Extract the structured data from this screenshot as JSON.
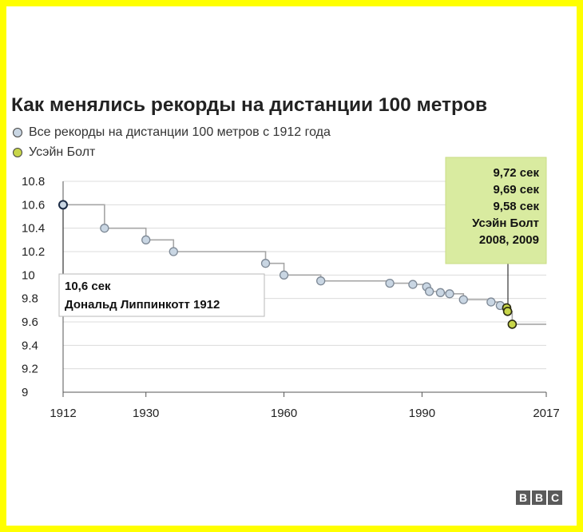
{
  "title": "Как менялись рекорды на дистанции 100 метров",
  "legend": [
    {
      "label": "Все рекорды на дистанции 100 метров с 1912 года",
      "color": "#c9d6e3"
    },
    {
      "label": "Усэйн Болт",
      "color": "#c8d64a"
    }
  ],
  "annotations": {
    "start": [
      "10,6 сек",
      "Дональд Липпинкотт 1912"
    ],
    "bolt": [
      "9,72 сек",
      "9,69 сек",
      "9,58 сек",
      "Усэйн Болт",
      "2008, 2009"
    ]
  },
  "logo": [
    "B",
    "B",
    "C"
  ],
  "colors": {
    "step_line": "#a6a6a6",
    "record_fill": "#c9d6e3",
    "bolt_fill": "#c8d64a",
    "bolt_box": "#d9eba0",
    "grid": "#dcdcdc"
  },
  "chart_data": {
    "type": "line",
    "step": true,
    "x_range": [
      1912,
      2017
    ],
    "ylim": [
      9,
      10.8
    ],
    "y_ticks": [
      "10.8",
      "10.6",
      "10.4",
      "10.2",
      "10",
      "9.8",
      "9.6",
      "9.4",
      "9.2",
      "9"
    ],
    "x_ticks": [
      "1912",
      "1930",
      "1960",
      "1990",
      "2017"
    ],
    "grid": "horizontal",
    "series": [
      {
        "name": "Все рекорды на дистанции 100 метров с 1912 года",
        "points": [
          [
            1912,
            10.6
          ],
          [
            1921,
            10.4
          ],
          [
            1930,
            10.3
          ],
          [
            1936,
            10.2
          ],
          [
            1956,
            10.1
          ],
          [
            1960,
            10.0
          ],
          [
            1968,
            9.95
          ],
          [
            1983,
            9.93
          ],
          [
            1988,
            9.92
          ],
          [
            1991,
            9.9
          ],
          [
            1991.6,
            9.86
          ],
          [
            1994,
            9.85
          ],
          [
            1996,
            9.84
          ],
          [
            1999,
            9.79
          ],
          [
            2005,
            9.77
          ],
          [
            2007,
            9.74
          ]
        ]
      },
      {
        "name": "Усэйн Болт",
        "points": [
          [
            2008.4,
            9.72
          ],
          [
            2008.6,
            9.69
          ],
          [
            2009.6,
            9.58
          ]
        ]
      }
    ]
  }
}
